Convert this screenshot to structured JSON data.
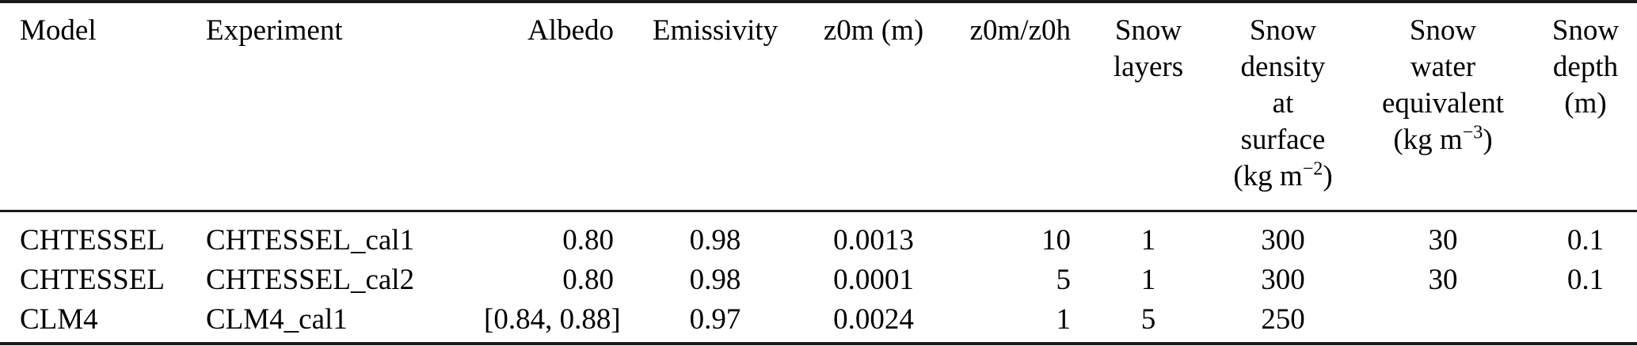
{
  "colors": {
    "background": "#ffffff",
    "text": "#000000",
    "rule": "#1b1b1b"
  },
  "table": {
    "columns": [
      {
        "key": "model",
        "align": "left",
        "header_lines": [
          "Model"
        ]
      },
      {
        "key": "experiment",
        "align": "left",
        "header_lines": [
          "Experiment"
        ]
      },
      {
        "key": "albedo",
        "align": "right",
        "header_lines": [
          "Albedo"
        ]
      },
      {
        "key": "emissivity",
        "align": "center",
        "header_lines": [
          "Emissivity"
        ]
      },
      {
        "key": "z0m",
        "align": "center",
        "header_lines": [
          "z0m (m)"
        ]
      },
      {
        "key": "z0m-z0h-ratio",
        "align": "right",
        "header_lines": [
          "z0m/z0h"
        ]
      },
      {
        "key": "snow-layers",
        "align": "center",
        "header_lines": [
          "Snow",
          "layers"
        ]
      },
      {
        "key": "snow-density",
        "align": "center",
        "header_lines": [
          "Snow",
          "density",
          "at",
          "surface",
          {
            "pre": "(kg m",
            "sup": "−2",
            "post": ")"
          }
        ]
      },
      {
        "key": "snow-water-equivalent",
        "align": "center",
        "header_lines": [
          "Snow",
          "water",
          "equivalent",
          {
            "pre": "(kg m",
            "sup": "−3",
            "post": ")"
          }
        ]
      },
      {
        "key": "snow-depth",
        "align": "center",
        "header_lines": [
          "Snow",
          "depth",
          "(m)"
        ]
      }
    ],
    "rows": [
      [
        "CHTESSEL",
        "CHTESSEL_cal1",
        "0.80",
        "0.98",
        "0.0013",
        "10",
        "1",
        "300",
        "30",
        "0.1"
      ],
      [
        "CHTESSEL",
        "CHTESSEL_cal2",
        "0.80",
        "0.98",
        "0.0001",
        "5",
        "1",
        "300",
        "30",
        "0.1"
      ],
      [
        "CLM4",
        "CLM4_cal1",
        "[0.84, 0.88]",
        "0.97",
        "0.0024",
        "1",
        "5",
        "250",
        "",
        ""
      ]
    ]
  }
}
